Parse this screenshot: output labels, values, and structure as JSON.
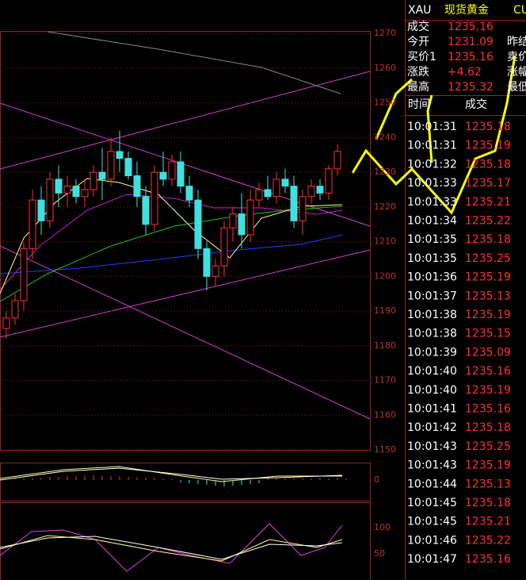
{
  "header": {
    "symbol": "XAU",
    "name": "现货黄金",
    "extra": "CU"
  },
  "quote": {
    "rows": [
      [
        "成交",
        "1235.16"
      ],
      [
        "今开",
        "1231.09"
      ],
      [
        "买价1",
        "1235.16"
      ],
      [
        "涨跌",
        "+4.62"
      ],
      [
        "最高",
        "1235.32"
      ]
    ],
    "right_labels": [
      "昨结",
      "卖价",
      "涨幅",
      "最低"
    ]
  },
  "trades": {
    "headers": [
      "时间",
      "成交"
    ],
    "rows": [
      [
        "10:01:31",
        "1235.18"
      ],
      [
        "10:01:31",
        "1235.19"
      ],
      [
        "10:01:32",
        "1235.18"
      ],
      [
        "10:01:33",
        "1235.17"
      ],
      [
        "10:01:33",
        "1235.21"
      ],
      [
        "10:01:34",
        "1235.22"
      ],
      [
        "10:01:35",
        "1235.18"
      ],
      [
        "10:01:35",
        "1235.25"
      ],
      [
        "10:01:36",
        "1235.19"
      ],
      [
        "10:01:37",
        "1235.13"
      ],
      [
        "10:01:38",
        "1235.19"
      ],
      [
        "10:01:38",
        "1235.15"
      ],
      [
        "10:01:39",
        "1235.09"
      ],
      [
        "10:01:40",
        "1235.16"
      ],
      [
        "10:01:40",
        "1235.19"
      ],
      [
        "10:01:41",
        "1235.16"
      ],
      [
        "10:01:42",
        "1235.18"
      ],
      [
        "10:01:43",
        "1235.25"
      ],
      [
        "10:01:43",
        "1235.19"
      ],
      [
        "10:01:44",
        "1235.13"
      ],
      [
        "10:01:45",
        "1235.18"
      ],
      [
        "10:01:45",
        "1235.21"
      ],
      [
        "10:01:46",
        "1235.22"
      ],
      [
        "10:01:47",
        "1235.16"
      ]
    ]
  },
  "price_chart": {
    "ylim": [
      1150,
      1270.5
    ],
    "yticks": [
      1270,
      1260,
      1250,
      1240,
      1230,
      1220,
      1210,
      1200,
      1190,
      1180,
      1170,
      1160,
      1150
    ],
    "candles": [
      [
        1185,
        1190,
        1182,
        1188
      ],
      [
        1188,
        1195,
        1186,
        1193
      ],
      [
        1193,
        1210,
        1190,
        1208
      ],
      [
        1208,
        1225,
        1205,
        1222
      ],
      [
        1222,
        1226,
        1212,
        1216
      ],
      [
        1216,
        1230,
        1214,
        1228
      ],
      [
        1228,
        1232,
        1220,
        1224
      ],
      [
        1224,
        1229,
        1220,
        1226
      ],
      [
        1226,
        1228,
        1221,
        1223
      ],
      [
        1223,
        1228,
        1220,
        1225
      ],
      [
        1225,
        1232,
        1223,
        1230
      ],
      [
        1230,
        1237,
        1222,
        1228
      ],
      [
        1228,
        1240,
        1226,
        1236
      ],
      [
        1236,
        1242,
        1230,
        1234
      ],
      [
        1234,
        1236,
        1228,
        1229
      ],
      [
        1229,
        1233,
        1220,
        1223
      ],
      [
        1223,
        1226,
        1212,
        1215
      ],
      [
        1215,
        1232,
        1213,
        1230
      ],
      [
        1230,
        1236,
        1226,
        1228
      ],
      [
        1228,
        1235,
        1226,
        1233
      ],
      [
        1233,
        1236,
        1224,
        1226
      ],
      [
        1226,
        1229,
        1220,
        1222
      ],
      [
        1222,
        1225,
        1205,
        1208
      ],
      [
        1208,
        1210,
        1196,
        1200
      ],
      [
        1200,
        1205,
        1197,
        1203
      ],
      [
        1203,
        1216,
        1200,
        1214
      ],
      [
        1214,
        1220,
        1210,
        1218
      ],
      [
        1218,
        1224,
        1208,
        1212
      ],
      [
        1212,
        1225,
        1210,
        1222
      ],
      [
        1222,
        1227,
        1220,
        1225
      ],
      [
        1225,
        1229,
        1222,
        1223
      ],
      [
        1223,
        1230,
        1221,
        1228
      ],
      [
        1228,
        1231,
        1224,
        1226
      ],
      [
        1226,
        1229,
        1214,
        1216
      ],
      [
        1216,
        1225,
        1212,
        1223
      ],
      [
        1223,
        1228,
        1221,
        1226
      ],
      [
        1226,
        1228,
        1222,
        1224
      ],
      [
        1224,
        1232,
        1222,
        1231
      ],
      [
        1231,
        1238,
        1229,
        1236
      ]
    ]
  },
  "macd": {
    "yticks": [
      0
    ]
  },
  "kdj": {
    "yticks": [
      100,
      50
    ]
  }
}
